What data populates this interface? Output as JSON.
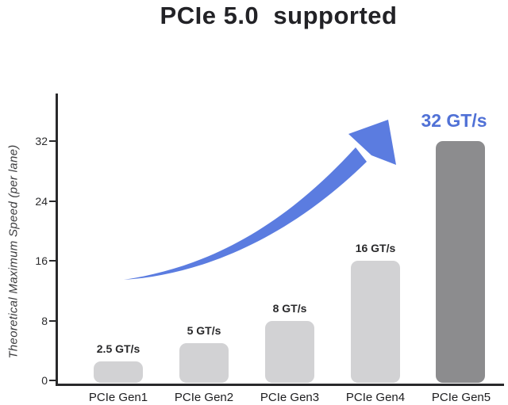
{
  "title": "PCIe 5.0  supported",
  "chart_data": {
    "type": "bar",
    "title": "PCIe 5.0 supported",
    "xlabel": "",
    "ylabel": "Theoretical Maximum Speed (per lane)",
    "unit": "GT/s",
    "categories": [
      "PCIe Gen1",
      "PCIe Gen2",
      "PCIe Gen3",
      "PCIe Gen4",
      "PCIe Gen5"
    ],
    "values": [
      2.5,
      5,
      8,
      16,
      32
    ],
    "value_labels": [
      "2.5 GT/s",
      "5 GT/s",
      "8 GT/s",
      "16 GT/s",
      "32 GT/s"
    ],
    "highlight_index": 4,
    "highlight_label": "32 GT/s",
    "yticks": [
      0,
      8,
      16,
      24,
      32
    ],
    "ytick_labels": [
      "0",
      "8",
      "16",
      "24",
      "32"
    ],
    "ylim": [
      0,
      38
    ],
    "grid": false,
    "legend": "none",
    "annotation": "blue curved upward trend arrow from Gen1 toward Gen5",
    "colors": {
      "bar": "#d2d2d4",
      "highlight_bar": "#8c8c8e",
      "accent_blue": "#5071d6",
      "arrow_blue": "#5b7ce0",
      "axis": "#29292b",
      "text": "#222226"
    }
  }
}
